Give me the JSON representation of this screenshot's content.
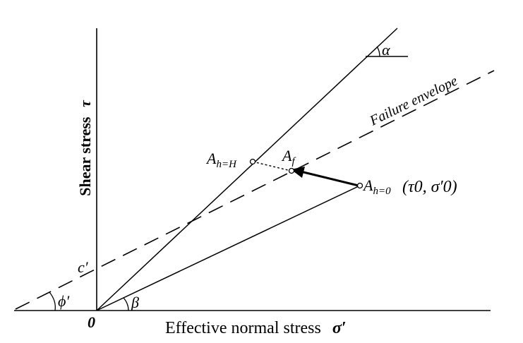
{
  "axes": {
    "y_label": "Shear stress",
    "y_symbol": "τ",
    "x_label": "Effective normal stress",
    "x_symbol": "σ′",
    "origin": "0"
  },
  "envelope": {
    "label": "Failure envelope",
    "intercept": "c′",
    "angle": "ϕ′"
  },
  "points": {
    "a_h_H": {
      "main": "A",
      "sub": "h=H"
    },
    "a_f": {
      "main": "A",
      "sub": "f"
    },
    "a_h_0": {
      "main": "A",
      "sub": "h=0",
      "coords": "(τ0, σ′0)"
    }
  },
  "angles": {
    "alpha": "α",
    "beta": "β"
  }
}
